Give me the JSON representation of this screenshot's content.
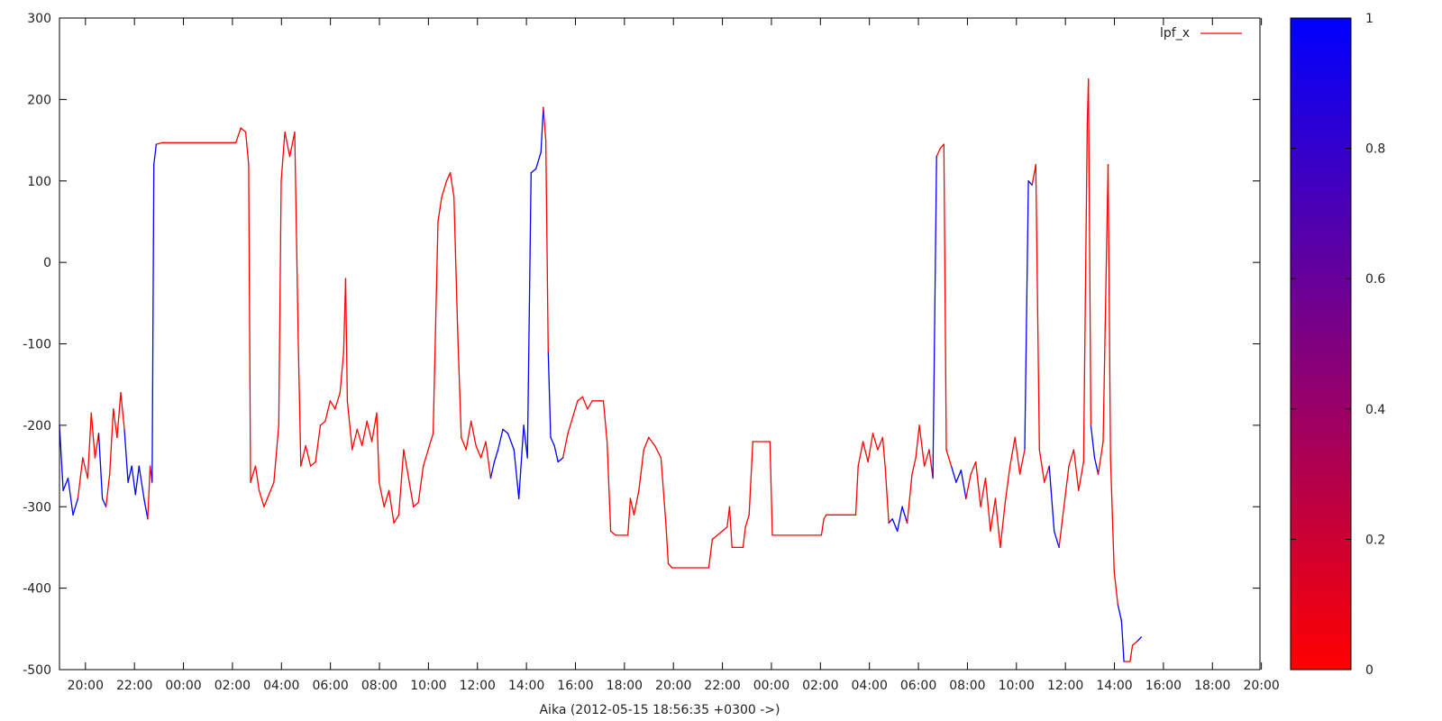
{
  "chart_data": {
    "type": "line",
    "xlabel": "Aika (2012-05-15 18:56:35 +0300 ->)",
    "ylabel": "",
    "ylim": [
      -500,
      300
    ],
    "yticks": [
      -500,
      -400,
      -300,
      -200,
      -100,
      0,
      100,
      200,
      300
    ],
    "x_unit": "hours since 2012-05-15 18:56:35",
    "xlim": [
      0,
      49
    ],
    "xticks": [
      {
        "hour": 1.06,
        "label": "20:00"
      },
      {
        "hour": 3.06,
        "label": "22:00"
      },
      {
        "hour": 5.06,
        "label": "00:00"
      },
      {
        "hour": 7.06,
        "label": "02:00"
      },
      {
        "hour": 9.06,
        "label": "04:00"
      },
      {
        "hour": 11.06,
        "label": "06:00"
      },
      {
        "hour": 13.06,
        "label": "08:00"
      },
      {
        "hour": 15.06,
        "label": "10:00"
      },
      {
        "hour": 17.06,
        "label": "12:00"
      },
      {
        "hour": 19.06,
        "label": "14:00"
      },
      {
        "hour": 21.06,
        "label": "16:00"
      },
      {
        "hour": 23.06,
        "label": "18:00"
      },
      {
        "hour": 25.06,
        "label": "20:00"
      },
      {
        "hour": 27.06,
        "label": "22:00"
      },
      {
        "hour": 29.06,
        "label": "00:00"
      },
      {
        "hour": 31.06,
        "label": "02:00"
      },
      {
        "hour": 33.06,
        "label": "04:00"
      },
      {
        "hour": 35.06,
        "label": "06:00"
      },
      {
        "hour": 37.06,
        "label": "08:00"
      },
      {
        "hour": 39.06,
        "label": "10:00"
      },
      {
        "hour": 41.06,
        "label": "12:00"
      },
      {
        "hour": 43.06,
        "label": "14:00"
      },
      {
        "hour": 45.06,
        "label": "16:00"
      },
      {
        "hour": 47.06,
        "label": "18:00"
      },
      {
        "hour": 49.06,
        "label": "20:00"
      }
    ],
    "grid": false,
    "legend": {
      "position": "top-right",
      "label": "lpf_x"
    },
    "colorbar": {
      "min": 0,
      "max": 1,
      "ticks": [
        0,
        0.2,
        0.4,
        0.6,
        0.8,
        1
      ],
      "tick_labels": [
        "0",
        "0.2",
        "0.4",
        "0.6",
        "0.8",
        "1"
      ],
      "low_color": "#ff0000",
      "high_color": "#0000ff"
    },
    "series": [
      {
        "name": "lpf_x",
        "color_low": "#ff0000",
        "color_high": "#0000ff",
        "points": [
          [
            0.0,
            -200,
            1
          ],
          [
            0.15,
            -280,
            1
          ],
          [
            0.35,
            -265,
            1
          ],
          [
            0.55,
            -310,
            1
          ],
          [
            0.75,
            -290,
            1
          ],
          [
            0.95,
            -240,
            0
          ],
          [
            1.15,
            -265,
            0
          ],
          [
            1.3,
            -185,
            0
          ],
          [
            1.45,
            -240,
            0
          ],
          [
            1.6,
            -210,
            0
          ],
          [
            1.75,
            -290,
            1
          ],
          [
            1.9,
            -300,
            1
          ],
          [
            2.05,
            -260,
            0
          ],
          [
            2.2,
            -180,
            0
          ],
          [
            2.35,
            -215,
            0
          ],
          [
            2.5,
            -160,
            0
          ],
          [
            2.65,
            -205,
            0
          ],
          [
            2.8,
            -270,
            1
          ],
          [
            2.95,
            -250,
            1
          ],
          [
            3.1,
            -285,
            1
          ],
          [
            3.25,
            -250,
            1
          ],
          [
            3.45,
            -290,
            1
          ],
          [
            3.6,
            -315,
            1
          ],
          [
            3.7,
            -250,
            0
          ],
          [
            3.78,
            -270,
            0
          ],
          [
            3.85,
            120,
            1
          ],
          [
            3.95,
            145,
            1
          ],
          [
            4.2,
            147,
            0
          ],
          [
            7.2,
            147,
            0
          ],
          [
            7.4,
            165,
            0
          ],
          [
            7.6,
            160,
            0
          ],
          [
            7.72,
            120,
            0
          ],
          [
            7.8,
            -270,
            0
          ],
          [
            8.0,
            -250,
            0
          ],
          [
            8.15,
            -280,
            0
          ],
          [
            8.35,
            -300,
            0
          ],
          [
            8.55,
            -285,
            0
          ],
          [
            8.75,
            -270,
            0
          ],
          [
            8.95,
            -200,
            0
          ],
          [
            9.05,
            100,
            0
          ],
          [
            9.2,
            160,
            0
          ],
          [
            9.4,
            130,
            0
          ],
          [
            9.6,
            160,
            0
          ],
          [
            9.75,
            -100,
            0
          ],
          [
            9.85,
            -250,
            0
          ],
          [
            10.05,
            -225,
            0
          ],
          [
            10.25,
            -250,
            0
          ],
          [
            10.45,
            -245,
            0
          ],
          [
            10.65,
            -200,
            0
          ],
          [
            10.85,
            -195,
            0
          ],
          [
            11.05,
            -170,
            0
          ],
          [
            11.25,
            -180,
            0
          ],
          [
            11.45,
            -160,
            0
          ],
          [
            11.6,
            -110,
            0
          ],
          [
            11.68,
            -20,
            0
          ],
          [
            11.75,
            -170,
            0
          ],
          [
            11.95,
            -230,
            0
          ],
          [
            12.15,
            -205,
            0
          ],
          [
            12.35,
            -225,
            0
          ],
          [
            12.55,
            -195,
            0
          ],
          [
            12.75,
            -220,
            0
          ],
          [
            12.95,
            -185,
            0
          ],
          [
            13.05,
            -270,
            0
          ],
          [
            13.25,
            -300,
            0
          ],
          [
            13.45,
            -280,
            0
          ],
          [
            13.65,
            -320,
            0
          ],
          [
            13.85,
            -310,
            0
          ],
          [
            14.05,
            -230,
            0
          ],
          [
            14.25,
            -265,
            0
          ],
          [
            14.45,
            -300,
            0
          ],
          [
            14.65,
            -295,
            0
          ],
          [
            14.85,
            -250,
            0
          ],
          [
            15.05,
            -230,
            0
          ],
          [
            15.25,
            -210,
            0
          ],
          [
            15.45,
            50,
            0
          ],
          [
            15.6,
            80,
            0
          ],
          [
            15.8,
            100,
            0
          ],
          [
            15.95,
            110,
            0
          ],
          [
            16.1,
            80,
            0
          ],
          [
            16.25,
            -80,
            0
          ],
          [
            16.4,
            -215,
            0
          ],
          [
            16.6,
            -230,
            0
          ],
          [
            16.8,
            -195,
            0
          ],
          [
            17.0,
            -225,
            0
          ],
          [
            17.2,
            -240,
            0
          ],
          [
            17.4,
            -220,
            0
          ],
          [
            17.6,
            -265,
            0
          ],
          [
            17.75,
            -245,
            1
          ],
          [
            17.9,
            -230,
            1
          ],
          [
            18.1,
            -205,
            1
          ],
          [
            18.3,
            -210,
            1
          ],
          [
            18.55,
            -230,
            1
          ],
          [
            18.75,
            -290,
            1
          ],
          [
            18.95,
            -200,
            1
          ],
          [
            19.1,
            -240,
            1
          ],
          [
            19.25,
            110,
            1
          ],
          [
            19.45,
            115,
            1
          ],
          [
            19.65,
            135,
            1
          ],
          [
            19.75,
            190,
            1
          ],
          [
            19.85,
            150,
            0
          ],
          [
            19.95,
            -110,
            0
          ],
          [
            20.05,
            -215,
            1
          ],
          [
            20.2,
            -225,
            1
          ],
          [
            20.35,
            -245,
            1
          ],
          [
            20.55,
            -240,
            1
          ],
          [
            20.75,
            -210,
            0
          ],
          [
            20.95,
            -190,
            0
          ],
          [
            21.15,
            -170,
            0
          ],
          [
            21.35,
            -165,
            0
          ],
          [
            21.55,
            -180,
            0
          ],
          [
            21.75,
            -170,
            0
          ],
          [
            22.2,
            -170,
            0
          ],
          [
            22.35,
            -220,
            0
          ],
          [
            22.5,
            -330,
            0
          ],
          [
            22.7,
            -335,
            0
          ],
          [
            23.0,
            -335,
            0
          ],
          [
            23.2,
            -335,
            0
          ],
          [
            23.3,
            -290,
            0
          ],
          [
            23.45,
            -310,
            0
          ],
          [
            23.65,
            -280,
            0
          ],
          [
            23.85,
            -230,
            0
          ],
          [
            24.05,
            -215,
            0
          ],
          [
            24.3,
            -225,
            0
          ],
          [
            24.55,
            -240,
            0
          ],
          [
            24.75,
            -320,
            0
          ],
          [
            24.85,
            -370,
            0
          ],
          [
            25.0,
            -375,
            0
          ],
          [
            26.5,
            -375,
            0
          ],
          [
            26.65,
            -340,
            0
          ],
          [
            26.85,
            -335,
            0
          ],
          [
            27.25,
            -325,
            0
          ],
          [
            27.35,
            -300,
            0
          ],
          [
            27.45,
            -350,
            0
          ],
          [
            27.9,
            -350,
            0
          ],
          [
            28.0,
            -325,
            0
          ],
          [
            28.15,
            -310,
            0
          ],
          [
            28.3,
            -220,
            0
          ],
          [
            29.0,
            -220,
            0
          ],
          [
            29.1,
            -335,
            0
          ],
          [
            31.1,
            -335,
            0
          ],
          [
            31.2,
            -315,
            0
          ],
          [
            31.3,
            -310,
            0
          ],
          [
            32.5,
            -310,
            0
          ],
          [
            32.6,
            -250,
            0
          ],
          [
            32.8,
            -220,
            0
          ],
          [
            33.0,
            -245,
            0
          ],
          [
            33.2,
            -210,
            0
          ],
          [
            33.4,
            -230,
            0
          ],
          [
            33.6,
            -215,
            0
          ],
          [
            33.7,
            -250,
            0
          ],
          [
            33.85,
            -320,
            0
          ],
          [
            34.0,
            -315,
            1
          ],
          [
            34.2,
            -330,
            1
          ],
          [
            34.4,
            -300,
            1
          ],
          [
            34.6,
            -320,
            1
          ],
          [
            34.8,
            -260,
            0
          ],
          [
            34.95,
            -240,
            0
          ],
          [
            35.1,
            -200,
            0
          ],
          [
            35.3,
            -250,
            0
          ],
          [
            35.5,
            -230,
            0
          ],
          [
            35.65,
            -265,
            0
          ],
          [
            35.8,
            130,
            1
          ],
          [
            35.95,
            140,
            0
          ],
          [
            36.1,
            145,
            0
          ],
          [
            36.2,
            -230,
            0
          ],
          [
            36.4,
            -250,
            0
          ],
          [
            36.6,
            -270,
            1
          ],
          [
            36.8,
            -255,
            1
          ],
          [
            37.0,
            -290,
            1
          ],
          [
            37.2,
            -260,
            0
          ],
          [
            37.4,
            -245,
            0
          ],
          [
            37.6,
            -300,
            0
          ],
          [
            37.8,
            -265,
            0
          ],
          [
            38.0,
            -330,
            0
          ],
          [
            38.2,
            -290,
            0
          ],
          [
            38.4,
            -350,
            0
          ],
          [
            38.6,
            -295,
            0
          ],
          [
            38.8,
            -250,
            0
          ],
          [
            39.0,
            -215,
            0
          ],
          [
            39.2,
            -260,
            0
          ],
          [
            39.4,
            -230,
            0
          ],
          [
            39.55,
            100,
            1
          ],
          [
            39.7,
            95,
            1
          ],
          [
            39.85,
            120,
            0
          ],
          [
            40.0,
            -230,
            0
          ],
          [
            40.2,
            -270,
            0
          ],
          [
            40.4,
            -250,
            0
          ],
          [
            40.6,
            -330,
            1
          ],
          [
            40.8,
            -350,
            1
          ],
          [
            41.0,
            -300,
            0
          ],
          [
            41.2,
            -250,
            0
          ],
          [
            41.4,
            -230,
            0
          ],
          [
            41.6,
            -280,
            0
          ],
          [
            41.8,
            -245,
            0
          ],
          [
            41.95,
            170,
            0
          ],
          [
            42.0,
            225,
            0
          ],
          [
            42.1,
            -200,
            0
          ],
          [
            42.25,
            -240,
            1
          ],
          [
            42.4,
            -260,
            1
          ],
          [
            42.6,
            -220,
            0
          ],
          [
            42.8,
            120,
            0
          ],
          [
            42.9,
            -240,
            0
          ],
          [
            43.05,
            -380,
            0
          ],
          [
            43.2,
            -420,
            0
          ],
          [
            43.35,
            -440,
            1
          ],
          [
            43.45,
            -490,
            1
          ],
          [
            43.7,
            -490,
            0
          ],
          [
            43.8,
            -470,
            0
          ],
          [
            44.0,
            -465,
            0
          ],
          [
            44.15,
            -460,
            1
          ]
        ]
      }
    ]
  }
}
